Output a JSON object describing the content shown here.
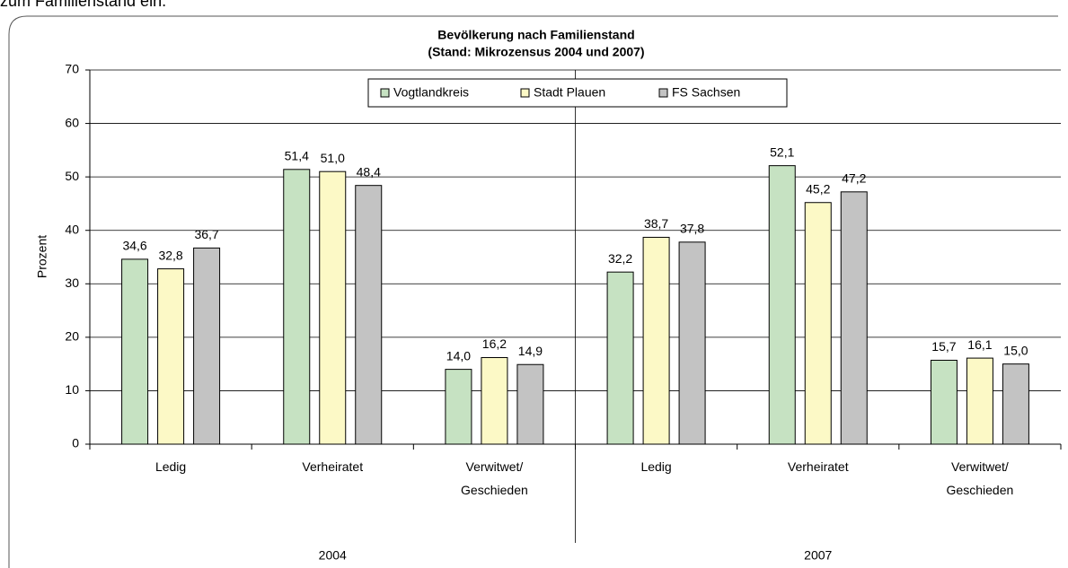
{
  "caption_above": "zum Familienstand ein.",
  "chart_data": {
    "type": "bar",
    "title": "Bevölkerung nach Familienstand",
    "subtitle": "(Stand: Mikrozensus 2004 und 2007)",
    "y_label": "Prozent",
    "categories": [
      "Ledig",
      "Verheiratet",
      "Verwitwet/ Geschieden",
      "Ledig",
      "Verheiratet",
      "Verwitwet/ Geschieden"
    ],
    "groups": [
      "2004",
      "2007"
    ],
    "series": [
      {
        "name": "Vogtlandkreis",
        "color": "#c6e2c2",
        "values": [
          34.6,
          51.4,
          14.0,
          32.2,
          52.1,
          15.7
        ],
        "value_labels": [
          "34,6",
          "51,4",
          "14,0",
          "32,2",
          "52,1",
          "15,7"
        ]
      },
      {
        "name": "Stadt Plauen",
        "color": "#fcf9c6",
        "values": [
          32.8,
          51.0,
          16.2,
          38.7,
          45.2,
          16.1
        ],
        "value_labels": [
          "32,8",
          "51,0",
          "16,2",
          "38,7",
          "45,2",
          "16,1"
        ]
      },
      {
        "name": "FS Sachsen",
        "color": "#c3c3c3",
        "values": [
          36.7,
          48.4,
          14.9,
          37.8,
          47.2,
          15.0
        ],
        "value_labels": [
          "36,7",
          "48,4",
          "14,9",
          "37,8",
          "47,2",
          "15,0"
        ]
      }
    ],
    "ylim": [
      0,
      70
    ],
    "yticks": [
      0,
      10,
      20,
      30,
      40,
      50,
      60,
      70
    ],
    "grid": true,
    "legend": "top"
  }
}
